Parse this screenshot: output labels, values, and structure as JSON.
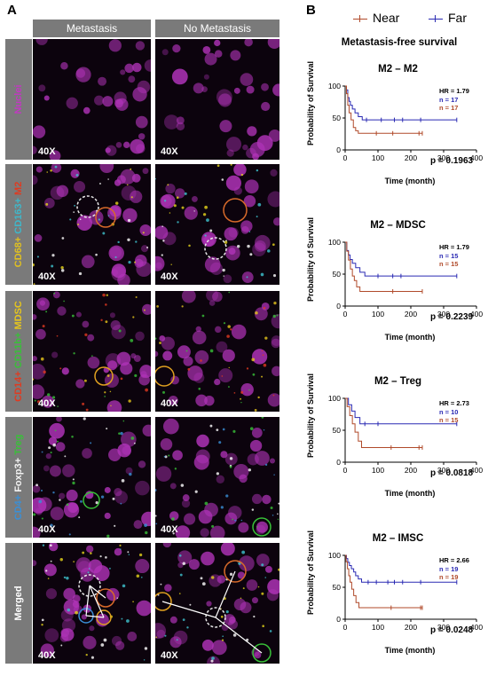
{
  "figure": {
    "panel_a_letter": "A",
    "panel_b_letter": "B"
  },
  "panel_a": {
    "columns": [
      "Metastasis",
      "No Metastasis"
    ],
    "magnification": "40X",
    "rows": [
      {
        "label_parts": [
          {
            "text": "Nuclei",
            "color": "#c238c2"
          }
        ]
      },
      {
        "label_parts": [
          {
            "text": "CD68+ ",
            "color": "#e0c020"
          },
          {
            "text": "CD163+ ",
            "color": "#3fb7c9"
          },
          {
            "text": "M2",
            "color": "#e03a20"
          }
        ]
      },
      {
        "label_parts": [
          {
            "text": "CD14+ ",
            "color": "#e03a20"
          },
          {
            "text": "CD11b+ ",
            "color": "#38c038"
          },
          {
            "text": "MDSC",
            "color": "#e6c61c"
          }
        ]
      },
      {
        "label_parts": [
          {
            "text": "CD4+ ",
            "color": "#3a8fd6"
          },
          {
            "text": "Foxp3+ ",
            "color": "#f2f2f2"
          },
          {
            "text": "Treg",
            "color": "#38c038"
          }
        ]
      },
      {
        "label_parts": [
          {
            "text": "Merged",
            "color": "#ffffff"
          }
        ]
      }
    ]
  },
  "panel_b": {
    "legend": {
      "near": "Near",
      "far": "Far",
      "near_color": "#b04a2a",
      "far_color": "#2a2ab3"
    },
    "title": "Metastasis-free survival",
    "ylabel": "Probability of Survival",
    "xlabel": "Time (month)",
    "charts": [
      {
        "title": "M2 – M2",
        "hr": "HR = 1.79",
        "n_far": "n = 17",
        "n_near": "n = 17",
        "p": "p = 0.1963"
      },
      {
        "title": "M2 – MDSC",
        "hr": "HR = 1.79",
        "n_far": "n = 15",
        "n_near": "n = 15",
        "p": "p = 0.2239"
      },
      {
        "title": "M2 – Treg",
        "hr": "HR = 2.73",
        "n_far": "n = 10",
        "n_near": "n = 15",
        "p": "p = 0.0818"
      },
      {
        "title": "M2 – IMSC",
        "hr": "HR = 2.66",
        "n_far": "n = 19",
        "n_near": "n = 19",
        "p": "p = 0.0248"
      }
    ]
  },
  "chart_data": [
    {
      "type": "line",
      "title": "M2 – M2",
      "xlabel": "Time (month)",
      "ylabel": "Probability of Survival",
      "xlim": [
        0,
        400
      ],
      "ylim": [
        0,
        100
      ],
      "xticks": [
        0,
        100,
        200,
        300,
        400
      ],
      "yticks": [
        0,
        50,
        100
      ],
      "series": [
        {
          "name": "Far",
          "color": "#2a2ab3",
          "points": [
            [
              0,
              100
            ],
            [
              4,
              94
            ],
            [
              8,
              82
            ],
            [
              12,
              76
            ],
            [
              16,
              70
            ],
            [
              22,
              64
            ],
            [
              30,
              58
            ],
            [
              40,
              52
            ],
            [
              52,
              47
            ],
            [
              340,
              47
            ]
          ],
          "censor": [
            [
              65,
              47
            ],
            [
              110,
              47
            ],
            [
              150,
              47
            ],
            [
              175,
              47
            ],
            [
              230,
              47
            ],
            [
              340,
              47
            ]
          ]
        },
        {
          "name": "Near",
          "color": "#b04a2a",
          "points": [
            [
              0,
              100
            ],
            [
              4,
              88
            ],
            [
              8,
              70
            ],
            [
              12,
              58
            ],
            [
              18,
              47
            ],
            [
              25,
              35
            ],
            [
              32,
              30
            ],
            [
              40,
              26
            ],
            [
              235,
              26
            ]
          ],
          "censor": [
            [
              95,
              26
            ],
            [
              145,
              26
            ],
            [
              225,
              26
            ],
            [
              235,
              26
            ]
          ]
        }
      ]
    },
    {
      "type": "line",
      "title": "M2 – MDSC",
      "xlabel": "Time (month)",
      "ylabel": "Probability of Survival",
      "xlim": [
        0,
        400
      ],
      "ylim": [
        0,
        100
      ],
      "xticks": [
        0,
        100,
        200,
        300,
        400
      ],
      "yticks": [
        0,
        50,
        100
      ],
      "series": [
        {
          "name": "Far",
          "color": "#2a2ab3",
          "points": [
            [
              0,
              100
            ],
            [
              5,
              87
            ],
            [
              10,
              80
            ],
            [
              15,
              73
            ],
            [
              22,
              67
            ],
            [
              32,
              60
            ],
            [
              45,
              53
            ],
            [
              60,
              47
            ],
            [
              340,
              47
            ]
          ],
          "censor": [
            [
              100,
              47
            ],
            [
              145,
              47
            ],
            [
              170,
              47
            ],
            [
              340,
              47
            ]
          ]
        },
        {
          "name": "Near",
          "color": "#b04a2a",
          "points": [
            [
              0,
              100
            ],
            [
              5,
              86
            ],
            [
              10,
              72
            ],
            [
              16,
              58
            ],
            [
              22,
              47
            ],
            [
              28,
              40
            ],
            [
              35,
              30
            ],
            [
              45,
              23
            ],
            [
              235,
              23
            ]
          ],
          "censor": [
            [
              145,
              23
            ],
            [
              235,
              23
            ]
          ]
        }
      ]
    },
    {
      "type": "line",
      "title": "M2 – Treg",
      "xlabel": "Time (month)",
      "ylabel": "Probability of Survival",
      "xlim": [
        0,
        400
      ],
      "ylim": [
        0,
        100
      ],
      "xticks": [
        0,
        100,
        200,
        300,
        400
      ],
      "yticks": [
        0,
        50,
        100
      ],
      "series": [
        {
          "name": "Far",
          "color": "#2a2ab3",
          "points": [
            [
              0,
              100
            ],
            [
              10,
              90
            ],
            [
              20,
              80
            ],
            [
              30,
              70
            ],
            [
              45,
              60
            ],
            [
              340,
              60
            ]
          ],
          "censor": [
            [
              60,
              60
            ],
            [
              100,
              60
            ],
            [
              340,
              60
            ]
          ]
        },
        {
          "name": "Near",
          "color": "#b04a2a",
          "points": [
            [
              0,
              100
            ],
            [
              6,
              87
            ],
            [
              14,
              73
            ],
            [
              22,
              60
            ],
            [
              30,
              47
            ],
            [
              40,
              33
            ],
            [
              50,
              23
            ],
            [
              235,
              23
            ]
          ],
          "censor": [
            [
              140,
              23
            ],
            [
              225,
              23
            ],
            [
              235,
              23
            ]
          ]
        }
      ]
    },
    {
      "type": "line",
      "title": "M2 – IMSC",
      "xlabel": "Time (month)",
      "ylabel": "Probability of Survival",
      "xlim": [
        0,
        400
      ],
      "ylim": [
        0,
        100
      ],
      "xticks": [
        0,
        100,
        200,
        300,
        400
      ],
      "yticks": [
        0,
        50,
        100
      ],
      "series": [
        {
          "name": "Far",
          "color": "#2a2ab3",
          "points": [
            [
              0,
              100
            ],
            [
              4,
              95
            ],
            [
              8,
              89
            ],
            [
              13,
              84
            ],
            [
              19,
              79
            ],
            [
              26,
              74
            ],
            [
              32,
              68
            ],
            [
              40,
              63
            ],
            [
              50,
              58
            ],
            [
              340,
              58
            ]
          ],
          "censor": [
            [
              70,
              58
            ],
            [
              95,
              58
            ],
            [
              130,
              58
            ],
            [
              150,
              58
            ],
            [
              175,
              58
            ],
            [
              230,
              58
            ],
            [
              340,
              58
            ]
          ]
        },
        {
          "name": "Near",
          "color": "#b04a2a",
          "points": [
            [
              0,
              100
            ],
            [
              3,
              90
            ],
            [
              7,
              79
            ],
            [
              11,
              68
            ],
            [
              15,
              58
            ],
            [
              20,
              47
            ],
            [
              26,
              37
            ],
            [
              33,
              26
            ],
            [
              42,
              18
            ],
            [
              235,
              18
            ]
          ],
          "censor": [
            [
              140,
              18
            ],
            [
              230,
              18
            ],
            [
              235,
              18
            ]
          ]
        }
      ]
    }
  ]
}
